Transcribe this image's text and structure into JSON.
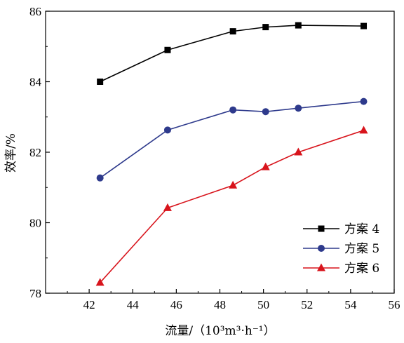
{
  "chart_data": {
    "type": "line",
    "xlabel": "流量/（10³m³·h⁻¹）",
    "ylabel": "效率/%",
    "xlim": [
      40,
      56
    ],
    "ylim": [
      78,
      86
    ],
    "xticks": [
      42,
      44,
      46,
      48,
      50,
      52,
      54,
      56
    ],
    "yticks": [
      78,
      80,
      82,
      84,
      86
    ],
    "grid": false,
    "legend_position": "bottom-right",
    "series": [
      {
        "name": "方案 4",
        "color": "#000000",
        "marker": "square",
        "x": [
          42.5,
          45.6,
          48.6,
          50.1,
          51.6,
          54.6
        ],
        "y": [
          84.0,
          84.9,
          85.43,
          85.55,
          85.6,
          85.58
        ]
      },
      {
        "name": "方案 5",
        "color": "#2e3a8c",
        "marker": "circle",
        "x": [
          42.5,
          45.6,
          48.6,
          50.1,
          51.6,
          54.6
        ],
        "y": [
          81.27,
          82.63,
          83.2,
          83.15,
          83.25,
          83.44
        ]
      },
      {
        "name": "方案 6",
        "color": "#d8141c",
        "marker": "triangle",
        "x": [
          42.5,
          45.6,
          48.6,
          50.1,
          51.6,
          54.6
        ],
        "y": [
          78.3,
          80.42,
          81.06,
          81.58,
          82.0,
          82.62
        ]
      }
    ]
  }
}
